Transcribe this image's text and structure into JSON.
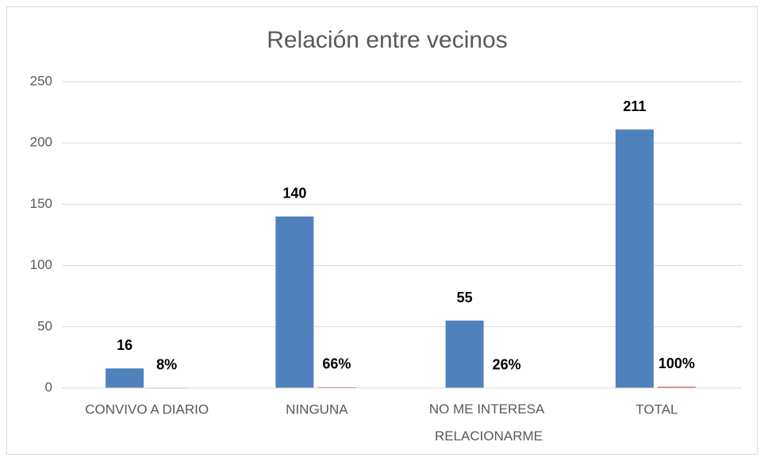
{
  "chart_data": {
    "type": "bar",
    "title": "Relación entre vecinos",
    "categories": [
      "CONVIVO A DIARIO",
      "NINGUNA",
      "NO ME INTERESA RELACIONARME",
      "TOTAL"
    ],
    "series": [
      {
        "color": "#4f81bd",
        "values": [
          16,
          140,
          55,
          211
        ]
      },
      {
        "color": "#c0504d",
        "values": [
          0.08,
          0.66,
          0.26,
          1
        ],
        "value_labels": [
          "8%",
          "66%",
          "26%",
          "100%"
        ]
      }
    ],
    "ylim": [
      0,
      250
    ],
    "yticks": [
      0,
      50,
      100,
      150,
      200,
      250
    ],
    "grid": true
  }
}
